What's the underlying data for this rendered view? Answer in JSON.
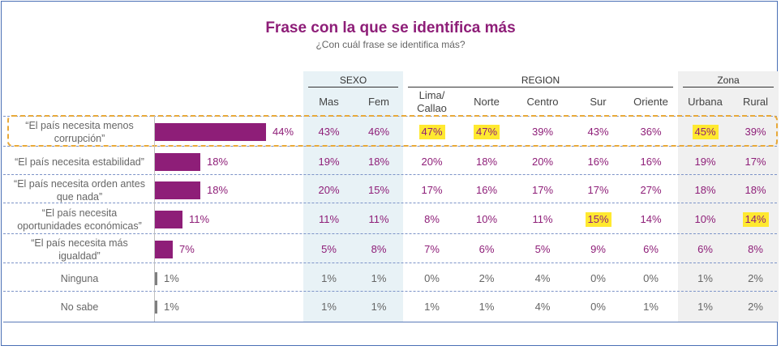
{
  "title": "Frase con la que se identifica más",
  "subtitle": "¿Con cuál frase se identifica más?",
  "groups": {
    "sexo": "SEXO",
    "region": "REGION",
    "zona": "Zona"
  },
  "columns": [
    "Mas",
    "Fem",
    "Lima/ Callao",
    "Norte",
    "Centro",
    "Sur",
    "Oriente",
    "Urbana",
    "Rural"
  ],
  "colors": {
    "accent": "#8e1e78",
    "bar_small": "#7f7f7f",
    "highlight": "#ffe930",
    "sexo_shade": "#e8f2f6",
    "zona_shade": "#f0f0f0"
  },
  "chart_data": {
    "type": "bar",
    "title": "Frase con la que se identifica más",
    "subtitle": "¿Con cuál frase se identifica más?",
    "categories": [
      "“El país necesita menos corrupción”",
      "“El país necesita estabilidad”",
      "“El país necesita orden antes que nada”",
      "“El país necesita oportunidades económicas”",
      "“El país necesita más igualdad”",
      "Ninguna",
      "No sabe"
    ],
    "values": [
      44,
      18,
      18,
      11,
      7,
      1,
      1
    ],
    "value_labels": [
      "44%",
      "18%",
      "18%",
      "11%",
      "7%",
      "1%",
      "1%"
    ],
    "table": [
      [
        "43%",
        "46%",
        "47%",
        "47%",
        "39%",
        "43%",
        "36%",
        "45%",
        "39%"
      ],
      [
        "19%",
        "18%",
        "20%",
        "18%",
        "20%",
        "16%",
        "16%",
        "19%",
        "17%"
      ],
      [
        "20%",
        "15%",
        "17%",
        "16%",
        "17%",
        "17%",
        "27%",
        "18%",
        "18%"
      ],
      [
        "11%",
        "11%",
        "8%",
        "10%",
        "11%",
        "15%",
        "14%",
        "10%",
        "14%"
      ],
      [
        "5%",
        "8%",
        "7%",
        "6%",
        "5%",
        "9%",
        "6%",
        "6%",
        "8%"
      ],
      [
        "1%",
        "1%",
        "0%",
        "2%",
        "4%",
        "0%",
        "0%",
        "1%",
        "2%"
      ],
      [
        "1%",
        "1%",
        "1%",
        "1%",
        "4%",
        "0%",
        "1%",
        "1%",
        "2%"
      ]
    ],
    "highlighted_cells": [
      [
        0,
        2
      ],
      [
        0,
        3
      ],
      [
        0,
        7
      ],
      [
        3,
        5
      ],
      [
        3,
        8
      ]
    ],
    "xlim": [
      0,
      50
    ]
  }
}
